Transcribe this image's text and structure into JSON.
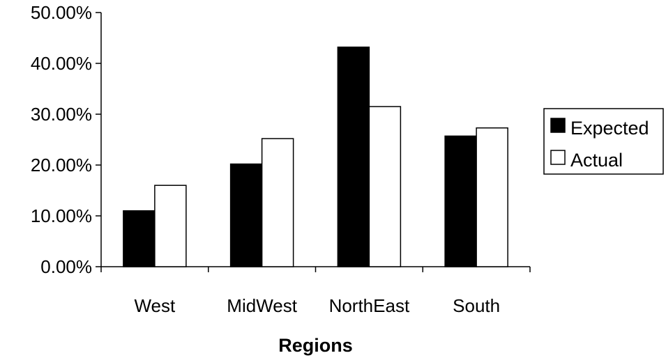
{
  "chart_data": {
    "type": "bar",
    "title": "",
    "xlabel": "Regions",
    "ylabel": "",
    "categories": [
      "West",
      "MidWest",
      "NorthEast",
      "South"
    ],
    "series": [
      {
        "name": "Expected",
        "values": [
          11.0,
          20.2,
          43.2,
          25.7
        ],
        "color": "#000000"
      },
      {
        "name": "Actual",
        "values": [
          16.0,
          25.2,
          31.5,
          27.3
        ],
        "color": "#ffffff"
      }
    ],
    "ylim": [
      0,
      50
    ],
    "yticks": [
      0,
      10,
      20,
      30,
      40,
      50
    ],
    "ytick_labels": [
      "0.00%",
      "10.00%",
      "20.00%",
      "30.00%",
      "40.00%",
      "50.00%"
    ],
    "grid": false,
    "legend_position": "right"
  }
}
